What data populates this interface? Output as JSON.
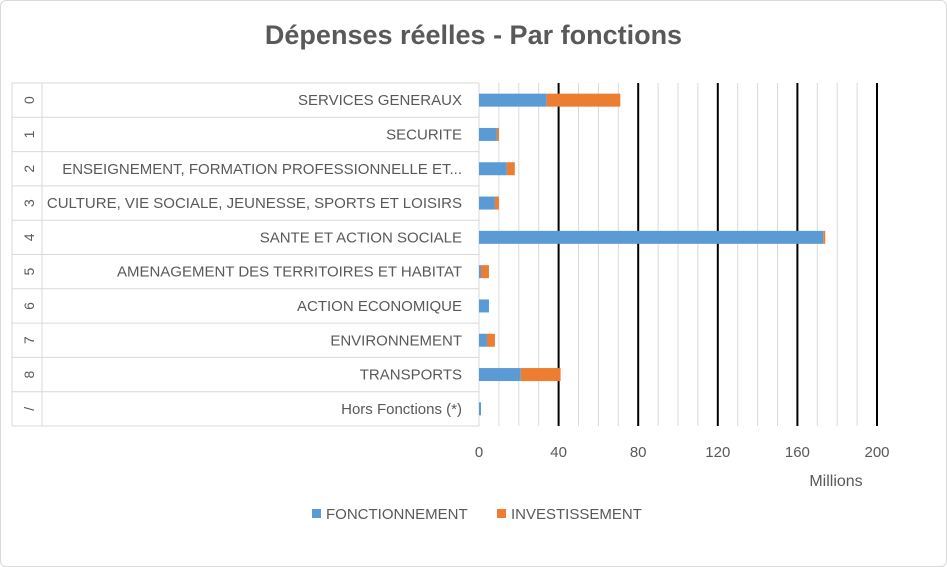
{
  "chart_data": {
    "type": "bar",
    "orientation": "horizontal",
    "stacked": true,
    "title": "Dépenses réelles - Par fonctions",
    "xlabel": "Millions",
    "ylabel": "",
    "xlim": [
      0,
      200
    ],
    "xticks": [
      0,
      40,
      80,
      120,
      160,
      200
    ],
    "categories": [
      {
        "code": "0",
        "label": "SERVICES GENERAUX"
      },
      {
        "code": "1",
        "label": "SECURITE"
      },
      {
        "code": "2",
        "label": "ENSEIGNEMENT, FORMATION PROFESSIONNELLE ET..."
      },
      {
        "code": "3",
        "label": "CULTURE, VIE SOCIALE, JEUNESSE, SPORTS ET LOISIRS"
      },
      {
        "code": "4",
        "label": "SANTE ET ACTION SOCIALE"
      },
      {
        "code": "5",
        "label": "AMENAGEMENT DES TERRITOIRES ET HABITAT"
      },
      {
        "code": "6",
        "label": "ACTION ECONOMIQUE"
      },
      {
        "code": "7",
        "label": "ENVIRONNEMENT"
      },
      {
        "code": "8",
        "label": "TRANSPORTS"
      },
      {
        "code": "/",
        "label": "Hors Fonctions (*)"
      }
    ],
    "series": [
      {
        "name": "FONCTIONNEMENT",
        "color": "#5b9bd5",
        "values": [
          34,
          9,
          14,
          8,
          173,
          1,
          5,
          4,
          21,
          1
        ]
      },
      {
        "name": "INVESTISSEMENT",
        "color": "#ed7d31",
        "values": [
          37,
          1,
          4,
          2,
          1,
          4,
          0,
          4,
          20,
          0
        ]
      }
    ],
    "grid": true,
    "legend": "bottom"
  }
}
